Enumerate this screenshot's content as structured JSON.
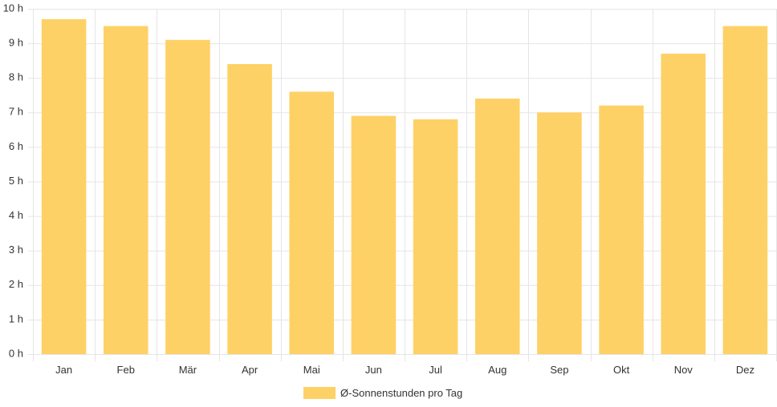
{
  "chart_data": {
    "type": "bar",
    "categories": [
      "Jan",
      "Feb",
      "Mär",
      "Apr",
      "Mai",
      "Jun",
      "Jul",
      "Aug",
      "Sep",
      "Okt",
      "Nov",
      "Dez"
    ],
    "series": [
      {
        "name": "Ø-Sonnenstunden pro Tag",
        "values": [
          9.7,
          9.5,
          9.1,
          8.4,
          7.6,
          6.9,
          6.8,
          7.4,
          7.0,
          7.2,
          8.7,
          9.5
        ]
      }
    ],
    "y_ticks": [
      "0 h",
      "1 h",
      "2 h",
      "3 h",
      "4 h",
      "5 h",
      "6 h",
      "7 h",
      "8 h",
      "9 h",
      "10 h"
    ],
    "ylim": [
      0,
      10
    ],
    "grid": true,
    "legend_position": "bottom",
    "colors": {
      "bar": "#fed166",
      "grid": "#e5e5e5",
      "text": "#333333"
    }
  }
}
